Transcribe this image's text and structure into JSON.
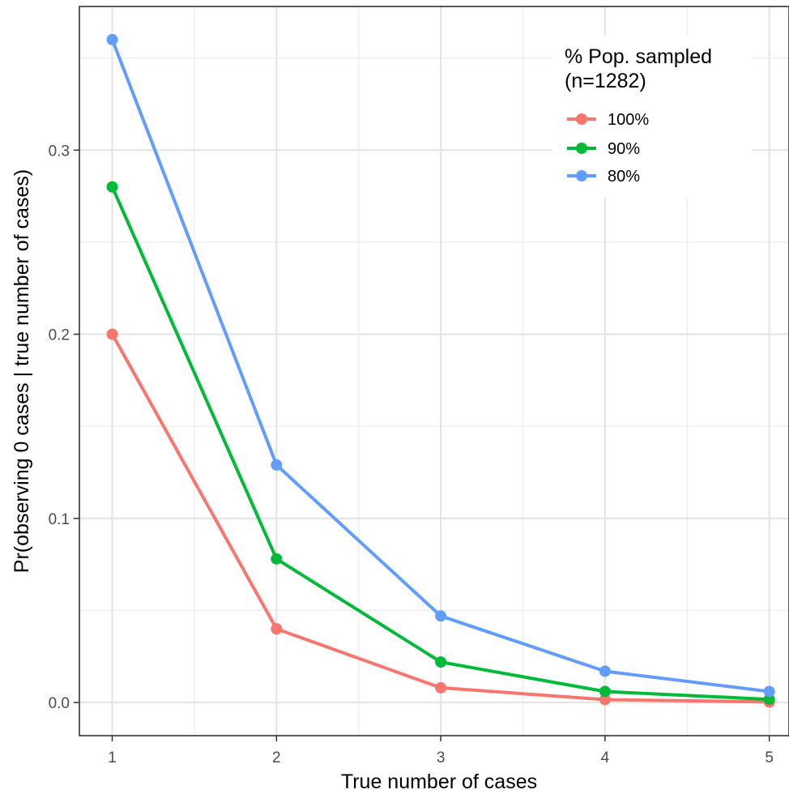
{
  "chart_data": {
    "type": "line",
    "x": [
      1,
      2,
      3,
      4,
      5
    ],
    "x_ticks": [
      "1",
      "2",
      "3",
      "4",
      "5"
    ],
    "y_ticks": [
      "0.0",
      "0.1",
      "0.2",
      "0.3"
    ],
    "xlabel": "True number of cases",
    "ylabel": "Pr(observing 0 cases | true number of cases)",
    "xlim": [
      0.8,
      5.12
    ],
    "ylim": [
      -0.018,
      0.378
    ],
    "grid": true,
    "legend": {
      "title_line1": "% Pop. sampled",
      "title_line2": "(n=1282)",
      "placement": "top-right"
    },
    "series": [
      {
        "name": "100%",
        "color": "#F8766D",
        "values": [
          0.2,
          0.04,
          0.008,
          0.0016,
          0.0003
        ]
      },
      {
        "name": "90%",
        "color": "#00BA38",
        "values": [
          0.28,
          0.078,
          0.022,
          0.006,
          0.0017
        ]
      },
      {
        "name": "80%",
        "color": "#619CFF",
        "values": [
          0.36,
          0.129,
          0.047,
          0.017,
          0.006
        ]
      }
    ]
  }
}
